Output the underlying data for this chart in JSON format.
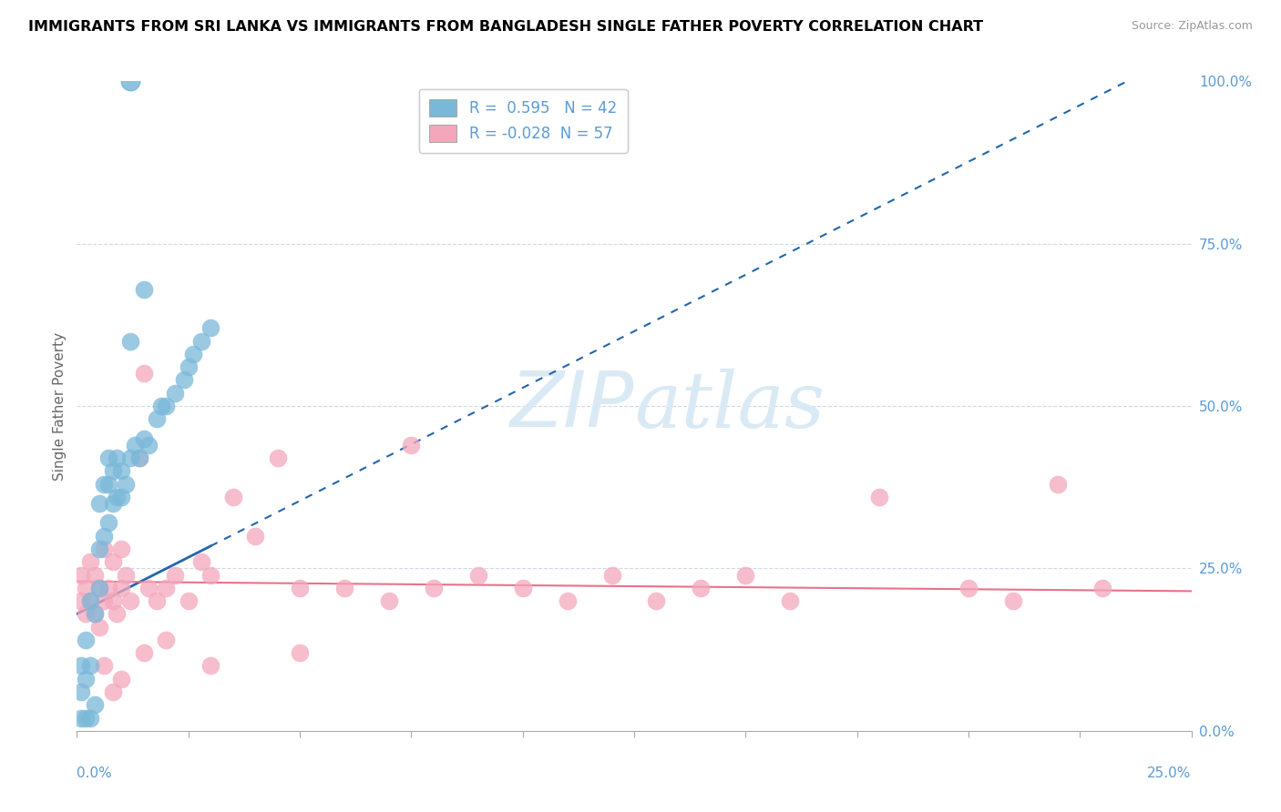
{
  "title": "IMMIGRANTS FROM SRI LANKA VS IMMIGRANTS FROM BANGLADESH SINGLE FATHER POVERTY CORRELATION CHART",
  "source": "Source: ZipAtlas.com",
  "ylabel": "Single Father Poverty",
  "xlim": [
    0.0,
    0.25
  ],
  "ylim": [
    0.0,
    1.0
  ],
  "sri_lanka_R": 0.595,
  "sri_lanka_N": 42,
  "bangladesh_R": -0.028,
  "bangladesh_N": 57,
  "sri_lanka_color": "#7ab8d9",
  "bangladesh_color": "#f4a7bb",
  "sri_lanka_line_color": "#2166ac",
  "bangladesh_line_color": "#e8728a",
  "watermark_color": "#daeaf5",
  "ytick_color": "#5b9bd5",
  "xtick_color": "#5b9bd5",
  "grid_color": "#d0d8e8",
  "legend_text_color": "#5b9bd5",
  "sl_x": [
    0.001,
    0.001,
    0.001,
    0.002,
    0.002,
    0.002,
    0.003,
    0.003,
    0.003,
    0.004,
    0.004,
    0.005,
    0.005,
    0.005,
    0.006,
    0.006,
    0.007,
    0.007,
    0.007,
    0.008,
    0.008,
    0.009,
    0.009,
    0.01,
    0.01,
    0.011,
    0.012,
    0.013,
    0.014,
    0.015,
    0.016,
    0.018,
    0.019,
    0.02,
    0.022,
    0.024,
    0.025,
    0.026,
    0.028,
    0.03,
    0.012,
    0.015
  ],
  "sl_y": [
    0.02,
    0.06,
    0.1,
    0.02,
    0.08,
    0.14,
    0.02,
    0.1,
    0.2,
    0.04,
    0.18,
    0.22,
    0.28,
    0.35,
    0.3,
    0.38,
    0.32,
    0.38,
    0.42,
    0.35,
    0.4,
    0.36,
    0.42,
    0.36,
    0.4,
    0.38,
    0.42,
    0.44,
    0.42,
    0.45,
    0.44,
    0.48,
    0.5,
    0.5,
    0.52,
    0.54,
    0.56,
    0.58,
    0.6,
    0.62,
    0.6,
    0.68
  ],
  "bd_x": [
    0.001,
    0.001,
    0.002,
    0.002,
    0.003,
    0.003,
    0.004,
    0.004,
    0.005,
    0.005,
    0.006,
    0.006,
    0.007,
    0.008,
    0.008,
    0.009,
    0.01,
    0.01,
    0.011,
    0.012,
    0.014,
    0.015,
    0.016,
    0.018,
    0.02,
    0.022,
    0.025,
    0.028,
    0.03,
    0.035,
    0.04,
    0.045,
    0.05,
    0.06,
    0.07,
    0.075,
    0.08,
    0.09,
    0.1,
    0.11,
    0.12,
    0.13,
    0.14,
    0.15,
    0.16,
    0.18,
    0.2,
    0.21,
    0.22,
    0.23,
    0.006,
    0.008,
    0.01,
    0.015,
    0.02,
    0.03,
    0.05
  ],
  "bd_y": [
    0.2,
    0.24,
    0.18,
    0.22,
    0.2,
    0.26,
    0.18,
    0.24,
    0.16,
    0.22,
    0.2,
    0.28,
    0.22,
    0.2,
    0.26,
    0.18,
    0.22,
    0.28,
    0.24,
    0.2,
    0.42,
    0.55,
    0.22,
    0.2,
    0.22,
    0.24,
    0.2,
    0.26,
    0.24,
    0.36,
    0.3,
    0.42,
    0.22,
    0.22,
    0.2,
    0.44,
    0.22,
    0.24,
    0.22,
    0.2,
    0.24,
    0.2,
    0.22,
    0.24,
    0.2,
    0.36,
    0.22,
    0.2,
    0.38,
    0.22,
    0.1,
    0.06,
    0.08,
    0.12,
    0.14,
    0.1,
    0.12
  ],
  "sl_trendline": [
    0.0,
    0.25,
    0.18,
    1.05
  ],
  "bd_trendline": [
    0.0,
    0.25,
    0.23,
    0.215
  ]
}
